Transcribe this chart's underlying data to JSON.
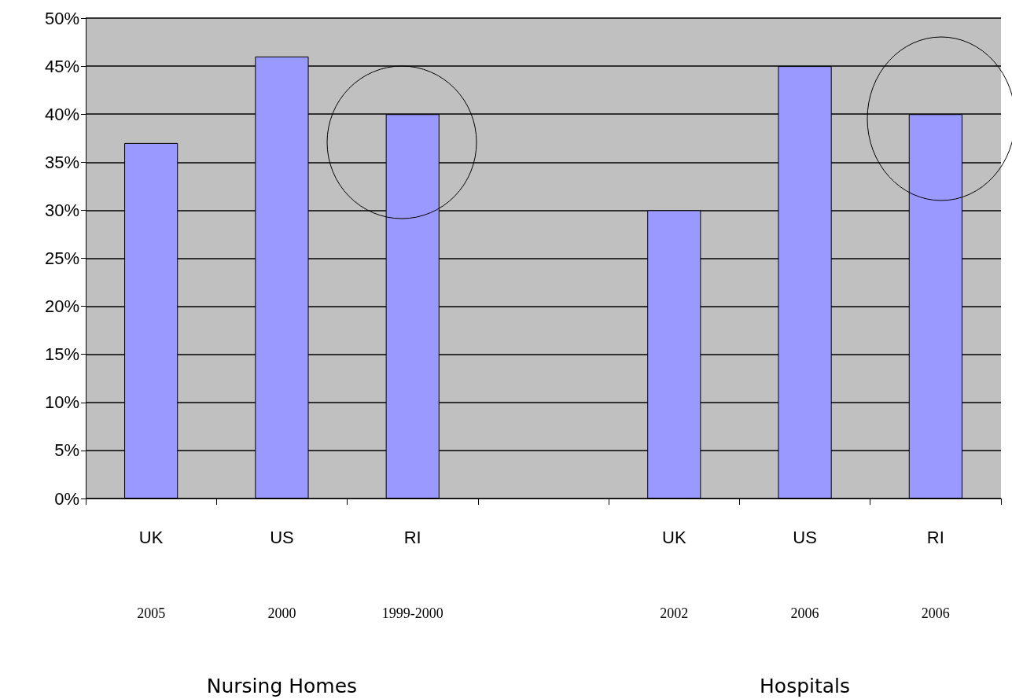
{
  "chart_data": {
    "type": "bar",
    "categories": [
      "UK",
      "US",
      "RI",
      null,
      "UK",
      "US",
      "RI"
    ],
    "values": [
      37,
      46,
      40,
      null,
      30,
      45,
      40
    ],
    "color": "#9999ff",
    "ylim": [
      0,
      50
    ],
    "yticks": [
      {
        "value": 0,
        "label": "0%"
      },
      {
        "value": 5,
        "label": "5%"
      },
      {
        "value": 10,
        "label": "10%"
      },
      {
        "value": 15,
        "label": "15%"
      },
      {
        "value": 20,
        "label": "20%"
      },
      {
        "value": 25,
        "label": "25%"
      },
      {
        "value": 30,
        "label": "30%"
      },
      {
        "value": 35,
        "label": "35%"
      },
      {
        "value": 40,
        "label": "40%"
      },
      {
        "value": 45,
        "label": "45%"
      },
      {
        "value": 50,
        "label": "50%"
      }
    ],
    "grid": "y",
    "annotations": [
      "2005",
      "2000",
      "1999-2000",
      "2002",
      "2006",
      "2006",
      "Nursing Homes",
      "Hospitals"
    ]
  }
}
